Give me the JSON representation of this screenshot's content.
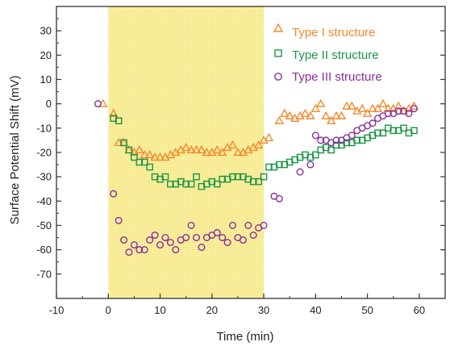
{
  "chart_data": {
    "type": "scatter",
    "xlabel": "Time (min)",
    "ylabel": "Surface Potential Shift (mV)",
    "xlim": [
      -10,
      65
    ],
    "ylim": [
      -80,
      40
    ],
    "xticks": [
      "-10",
      "0",
      "10",
      "20",
      "30",
      "40",
      "50",
      "60"
    ],
    "yticks": [
      "30",
      "20",
      "10",
      "0",
      "-10",
      "-20",
      "-30",
      "-40",
      "-50",
      "-60",
      "-70"
    ],
    "shaded_region": {
      "x": [
        0,
        30
      ],
      "color": "#f6e77a"
    },
    "legend_position": "top-right",
    "series": [
      {
        "name": "Type I structure",
        "marker": "triangle",
        "color": "#f08a2c",
        "points": [
          [
            -1,
            0
          ],
          [
            1,
            -4
          ],
          [
            2,
            -16
          ],
          [
            3,
            -16
          ],
          [
            4,
            -19
          ],
          [
            5,
            -20
          ],
          [
            6,
            -19
          ],
          [
            7,
            -21
          ],
          [
            8,
            -21
          ],
          [
            9,
            -22
          ],
          [
            10,
            -22
          ],
          [
            11,
            -22
          ],
          [
            12,
            -21
          ],
          [
            13,
            -20
          ],
          [
            14,
            -19
          ],
          [
            15,
            -18
          ],
          [
            16,
            -19
          ],
          [
            17,
            -19
          ],
          [
            18,
            -19
          ],
          [
            19,
            -20
          ],
          [
            20,
            -20
          ],
          [
            21,
            -19
          ],
          [
            22,
            -20
          ],
          [
            23,
            -18
          ],
          [
            24,
            -17
          ],
          [
            25,
            -20
          ],
          [
            26,
            -20
          ],
          [
            27,
            -19
          ],
          [
            28,
            -18
          ],
          [
            29,
            -17
          ],
          [
            30,
            -15
          ],
          [
            31,
            -14
          ],
          [
            33,
            -7
          ],
          [
            34,
            -4
          ],
          [
            35,
            -5
          ],
          [
            36,
            -6
          ],
          [
            37,
            -5
          ],
          [
            38,
            -4
          ],
          [
            39,
            -5
          ],
          [
            40,
            -2
          ],
          [
            41,
            0
          ],
          [
            42,
            -5
          ],
          [
            43,
            -7
          ],
          [
            44,
            -5
          ],
          [
            45,
            -5
          ],
          [
            46,
            -1
          ],
          [
            47,
            -1
          ],
          [
            48,
            -3
          ],
          [
            49,
            -2
          ],
          [
            50,
            -4
          ],
          [
            51,
            -2
          ],
          [
            52,
            -2
          ],
          [
            53,
            0
          ],
          [
            54,
            -2
          ],
          [
            55,
            -2
          ],
          [
            56,
            -1
          ],
          [
            57,
            -3
          ],
          [
            58,
            -2
          ],
          [
            59,
            -1
          ]
        ]
      },
      {
        "name": "Type II structure",
        "marker": "square",
        "color": "#1b9646",
        "points": [
          [
            1,
            -6
          ],
          [
            2,
            -7
          ],
          [
            3,
            -16
          ],
          [
            4,
            -19
          ],
          [
            5,
            -22
          ],
          [
            6,
            -24
          ],
          [
            7,
            -24
          ],
          [
            8,
            -26
          ],
          [
            9,
            -30
          ],
          [
            10,
            -31
          ],
          [
            11,
            -30
          ],
          [
            12,
            -33
          ],
          [
            13,
            -33
          ],
          [
            14,
            -32
          ],
          [
            15,
            -33
          ],
          [
            16,
            -33
          ],
          [
            17,
            -30
          ],
          [
            18,
            -34
          ],
          [
            19,
            -33
          ],
          [
            20,
            -32
          ],
          [
            21,
            -33
          ],
          [
            22,
            -31
          ],
          [
            23,
            -31
          ],
          [
            24,
            -30
          ],
          [
            25,
            -30
          ],
          [
            26,
            -30
          ],
          [
            27,
            -31
          ],
          [
            28,
            -32
          ],
          [
            29,
            -32
          ],
          [
            30,
            -30
          ],
          [
            31,
            -26
          ],
          [
            32,
            -26
          ],
          [
            33,
            -25
          ],
          [
            34,
            -25
          ],
          [
            35,
            -24
          ],
          [
            36,
            -23
          ],
          [
            37,
            -22
          ],
          [
            38,
            -21
          ],
          [
            39,
            -22
          ],
          [
            40,
            -21
          ],
          [
            41,
            -19
          ],
          [
            42,
            -18
          ],
          [
            43,
            -19
          ],
          [
            44,
            -17
          ],
          [
            45,
            -17
          ],
          [
            46,
            -16
          ],
          [
            47,
            -16
          ],
          [
            48,
            -15
          ],
          [
            49,
            -15
          ],
          [
            50,
            -14
          ],
          [
            51,
            -13
          ],
          [
            52,
            -12
          ],
          [
            53,
            -12
          ],
          [
            54,
            -10
          ],
          [
            55,
            -11
          ],
          [
            56,
            -11
          ],
          [
            57,
            -10
          ],
          [
            58,
            -12
          ],
          [
            59,
            -11
          ]
        ]
      },
      {
        "name": "Type III structure",
        "marker": "circle",
        "color": "#8a2f9c",
        "points": [
          [
            -2,
            0
          ],
          [
            1,
            -37
          ],
          [
            2,
            -48
          ],
          [
            3,
            -56
          ],
          [
            4,
            -61
          ],
          [
            5,
            -58
          ],
          [
            6,
            -60
          ],
          [
            7,
            -60
          ],
          [
            8,
            -56
          ],
          [
            9,
            -54
          ],
          [
            10,
            -58
          ],
          [
            11,
            -55
          ],
          [
            12,
            -57
          ],
          [
            13,
            -60
          ],
          [
            14,
            -56
          ],
          [
            15,
            -55
          ],
          [
            16,
            -50
          ],
          [
            17,
            -55
          ],
          [
            18,
            -59
          ],
          [
            19,
            -55
          ],
          [
            20,
            -54
          ],
          [
            21,
            -53
          ],
          [
            22,
            -55
          ],
          [
            23,
            -57
          ],
          [
            24,
            -50
          ],
          [
            25,
            -55
          ],
          [
            26,
            -56
          ],
          [
            27,
            -50
          ],
          [
            28,
            -54
          ],
          [
            29,
            -51
          ],
          [
            30,
            -50
          ],
          [
            32,
            -38
          ],
          [
            33,
            -39
          ],
          [
            37,
            -28
          ],
          [
            39,
            -25
          ],
          [
            40,
            -13
          ],
          [
            41,
            -15
          ],
          [
            42,
            -15
          ],
          [
            43,
            -16
          ],
          [
            44,
            -15
          ],
          [
            45,
            -15
          ],
          [
            46,
            -14
          ],
          [
            47,
            -13
          ],
          [
            48,
            -11
          ],
          [
            49,
            -10
          ],
          [
            50,
            -9
          ],
          [
            51,
            -8
          ],
          [
            52,
            -6
          ],
          [
            53,
            -5
          ],
          [
            54,
            -4
          ],
          [
            55,
            -4
          ],
          [
            56,
            -3
          ],
          [
            57,
            -3
          ],
          [
            58,
            -4
          ],
          [
            59,
            -2
          ]
        ]
      }
    ]
  }
}
